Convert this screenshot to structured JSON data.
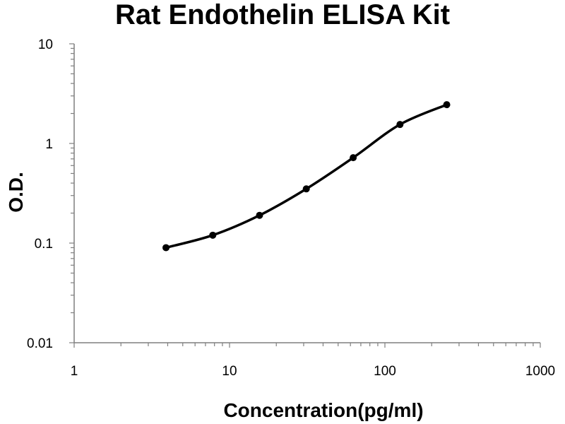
{
  "chart_data": {
    "type": "scatter",
    "title": "Rat Endothelin ELISA Kit",
    "xlabel": "Concentration(pg/ml)",
    "ylabel": "O.D.",
    "x_scale": "log",
    "y_scale": "log",
    "xlim": [
      1,
      1000
    ],
    "ylim": [
      0.01,
      10
    ],
    "x_ticks": [
      "1",
      "10",
      "100",
      "1000"
    ],
    "y_ticks": [
      "0.01",
      "0.1",
      "1",
      "10"
    ],
    "grid": false,
    "legend": "none",
    "series": [
      {
        "x": [
          3.9,
          7.8,
          15.6,
          31.2,
          62.5,
          125,
          250
        ],
        "y": [
          0.09,
          0.12,
          0.19,
          0.35,
          0.72,
          1.55,
          2.45
        ],
        "line": "smooth",
        "color": "#000000"
      }
    ]
  }
}
